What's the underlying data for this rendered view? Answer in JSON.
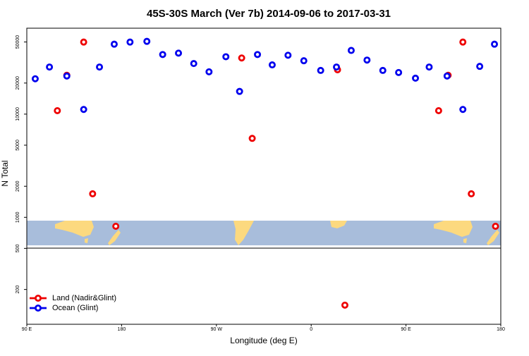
{
  "chart_data": {
    "type": "scatter",
    "title": "45S-30S March (Ver 7b)   2014-09-06 to 2017-03-31",
    "x_label": "Longitude (deg E)",
    "y_label": "N Total",
    "xlim": [
      90,
      540
    ],
    "ylim": [
      92,
      68000
    ],
    "log_y": true,
    "legend": "bottom-left",
    "xticks": [
      {
        "value": 90,
        "label": "90 E"
      },
      {
        "value": 180,
        "label": "180"
      },
      {
        "value": 270,
        "label": "90 W"
      },
      {
        "value": 360,
        "label": "0"
      },
      {
        "value": 450,
        "label": "90 E"
      },
      {
        "value": 540,
        "label": "180"
      }
    ],
    "yticks": [
      200,
      500,
      1000,
      2000,
      5000,
      10000,
      20000,
      50000
    ],
    "series": [
      {
        "name": "Land (Nadir&Glint)",
        "color": "#ee0000",
        "x": [
          119,
          128,
          144,
          152.5,
          174.5,
          294,
          304,
          385,
          392,
          481,
          490,
          504,
          512,
          535
        ],
        "values": [
          10800,
          23800,
          49900,
          1690,
          819,
          35000,
          5820,
          26900,
          141,
          10800,
          23800,
          49900,
          1690,
          819
        ]
      },
      {
        "name": "Ocean (Glint)",
        "color": "#0000ee",
        "x": [
          98,
          111.5,
          128,
          144,
          159,
          173,
          188,
          204,
          219,
          234,
          248.5,
          263,
          279,
          292,
          309,
          323,
          338,
          353,
          369,
          384,
          398,
          413,
          428,
          443,
          459,
          472,
          489,
          504,
          520,
          534
        ],
        "values": [
          22000,
          28600,
          23400,
          11100,
          28600,
          47600,
          49900,
          50700,
          37800,
          39000,
          30900,
          25700,
          36000,
          16600,
          37800,
          30000,
          37200,
          32900,
          26500,
          28600,
          41400,
          33400,
          26500,
          25300,
          22300,
          28600,
          23400,
          11100,
          29000,
          47600
        ]
      }
    ]
  }
}
